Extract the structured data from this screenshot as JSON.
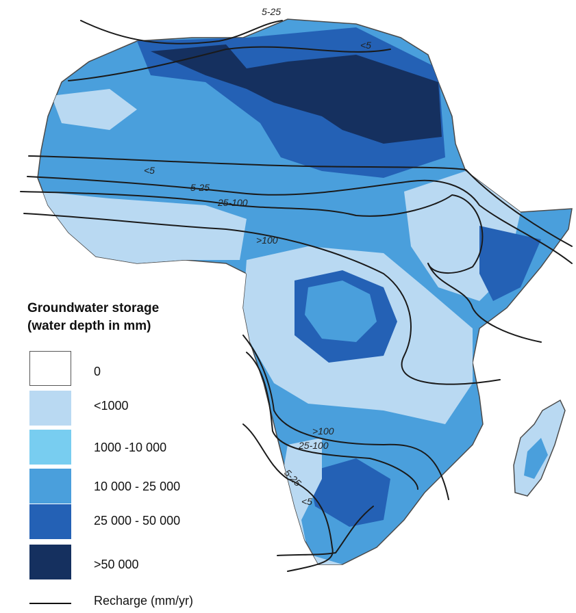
{
  "legend": {
    "title_line1": "Groundwater storage",
    "title_line2": "(water depth in mm)",
    "classes": [
      {
        "label": "0",
        "color": "#ffffff"
      },
      {
        "label": "<1000",
        "color": "#b9d9f2"
      },
      {
        "label": "1000 -10 000",
        "color": "#78cdf0"
      },
      {
        "label": "10 000 - 25 000",
        "color": "#4a9fdc"
      },
      {
        "label": "25 000 - 50 000",
        "color": "#2461b5"
      },
      {
        "label": ">50 000",
        "color": "#15305f"
      }
    ],
    "recharge_label": "Recharge (mm/yr)"
  },
  "contour_labels": {
    "north_top": "5-25",
    "north_east": "<5",
    "sahel_lt5": "<5",
    "sahel_5_25": "5-25",
    "sahel_25_100": "25-100",
    "sahel_gt100": ">100",
    "south_gt100": ">100",
    "south_25_100": "25-100",
    "south_5_25": "5-25",
    "south_lt5": "<5"
  },
  "colors": {
    "outline": "#4a4a4a",
    "contour": "#1a1a1a"
  }
}
